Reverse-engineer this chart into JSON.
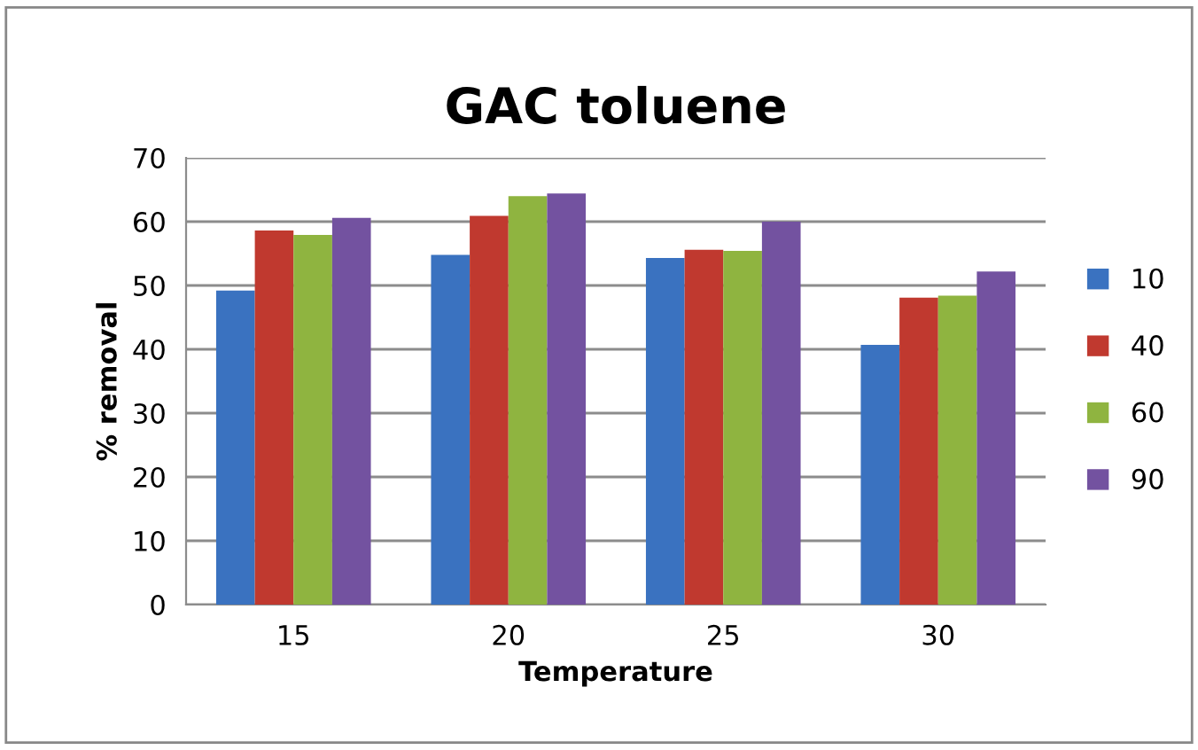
{
  "chart_data": {
    "type": "bar",
    "title": "GAC toluene",
    "xlabel": "Temperature",
    "ylabel": "% removal",
    "categories": [
      "15",
      "20",
      "25",
      "30"
    ],
    "series": [
      {
        "name": "10",
        "color": "#3a72c0",
        "values": [
          49.2,
          54.8,
          54.3,
          40.7
        ]
      },
      {
        "name": "40",
        "color": "#c0392f",
        "values": [
          58.6,
          60.9,
          55.6,
          48.1
        ]
      },
      {
        "name": "60",
        "color": "#8fb440",
        "values": [
          57.9,
          64.0,
          55.4,
          48.4
        ]
      },
      {
        "name": "90",
        "color": "#7352a0",
        "values": [
          60.6,
          64.4,
          60.0,
          52.2
        ]
      }
    ],
    "ylim": [
      0,
      70
    ],
    "yticks": [
      0,
      10,
      20,
      30,
      40,
      50,
      60,
      70
    ],
    "grid": "y",
    "legend": "right"
  }
}
